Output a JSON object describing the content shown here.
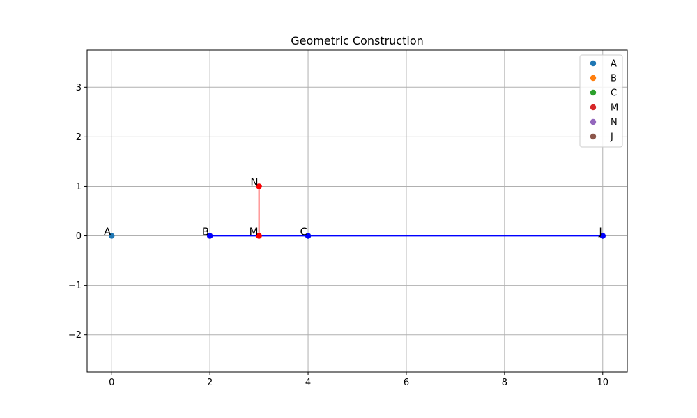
{
  "chart_data": {
    "type": "scatter",
    "title": "Geometric Construction",
    "xlabel": "",
    "ylabel": "",
    "xlim": [
      -0.5,
      10.5
    ],
    "ylim": [
      -2.75,
      3.75
    ],
    "x_ticks": [
      0,
      2,
      4,
      6,
      8,
      10
    ],
    "x_tick_labels": [
      "0",
      "2",
      "4",
      "6",
      "8",
      "10"
    ],
    "y_ticks": [
      -2,
      -1,
      0,
      1,
      2,
      3
    ],
    "y_tick_labels": [
      "−2",
      "−1",
      "0",
      "1",
      "2",
      "3"
    ],
    "grid": true,
    "legend_position": "top-right",
    "points": [
      {
        "name": "A",
        "x": 0,
        "y": 0,
        "legend_color": "#1f77b4",
        "marker_color": "#1f77b4"
      },
      {
        "name": "B",
        "x": 2,
        "y": 0,
        "legend_color": "#ff7f0e",
        "marker_color": "#0000ff"
      },
      {
        "name": "C",
        "x": 4,
        "y": 0,
        "legend_color": "#2ca02c",
        "marker_color": "#0000ff"
      },
      {
        "name": "M",
        "x": 3,
        "y": 0,
        "legend_color": "#d62728",
        "marker_color": "#ff0000"
      },
      {
        "name": "N",
        "x": 3,
        "y": 1,
        "legend_color": "#9467bd",
        "marker_color": "#ff0000"
      },
      {
        "name": "J",
        "x": 10,
        "y": 0,
        "legend_color": "#8c564b",
        "marker_color": "#0000ff"
      }
    ],
    "segments": [
      {
        "from": [
          2,
          0
        ],
        "to": [
          10,
          0
        ],
        "color": "#0000ff"
      },
      {
        "from": [
          3,
          0
        ],
        "to": [
          3,
          1
        ],
        "color": "#ff0000"
      }
    ]
  }
}
